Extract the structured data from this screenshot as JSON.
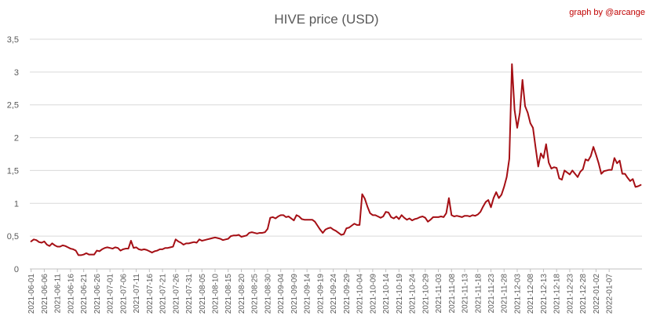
{
  "chart_data": {
    "type": "line",
    "title": "HIVE price (USD)",
    "credit": "graph by @arcange",
    "xlabel": "",
    "ylabel": "",
    "ylim": [
      0,
      3.5
    ],
    "yticks": [
      "0",
      "0,5",
      "1",
      "1,5",
      "2",
      "2,5",
      "3",
      "3,5"
    ],
    "grid": "horizontal",
    "legend": "none",
    "colors": {
      "series": "#a50f15",
      "text": "#595959",
      "credit": "#c00000",
      "grid": "#d9d9d9"
    },
    "x_tick_labels": [
      "2021-06-01",
      "2021-06-06",
      "2021-06-11",
      "2021-06-16",
      "2021-06-21",
      "2021-06-26",
      "2021-07-01",
      "2021-07-06",
      "2021-07-11",
      "2021-07-16",
      "2021-07-21",
      "2021-07-26",
      "2021-07-31",
      "2021-08-05",
      "2021-08-10",
      "2021-08-15",
      "2021-08-20",
      "2021-08-25",
      "2021-08-30",
      "2021-09-04",
      "2021-09-09",
      "2021-09-14",
      "2021-09-19",
      "2021-09-24",
      "2021-09-29",
      "2021-10-04",
      "2021-10-09",
      "2021-10-14",
      "2021-10-19",
      "2021-10-24",
      "2021-10-29",
      "2021-11-03",
      "2021-11-08",
      "2021-11-13",
      "2021-11-18",
      "2021-11-23",
      "2021-11-28",
      "2021-12-03",
      "2021-12-08",
      "2021-12-13",
      "2021-12-18",
      "2021-12-23",
      "2021-12-28",
      "2022-01-02",
      "2022-01-07"
    ],
    "series": [
      {
        "start_date": "2021-06-01",
        "values": [
          0.42,
          0.45,
          0.44,
          0.41,
          0.4,
          0.42,
          0.37,
          0.35,
          0.39,
          0.36,
          0.34,
          0.34,
          0.36,
          0.35,
          0.33,
          0.31,
          0.3,
          0.28,
          0.21,
          0.21,
          0.22,
          0.24,
          0.22,
          0.22,
          0.22,
          0.28,
          0.27,
          0.3,
          0.32,
          0.33,
          0.32,
          0.31,
          0.33,
          0.32,
          0.28,
          0.3,
          0.31,
          0.31,
          0.43,
          0.32,
          0.33,
          0.3,
          0.29,
          0.3,
          0.29,
          0.27,
          0.25,
          0.27,
          0.28,
          0.3,
          0.3,
          0.32,
          0.32,
          0.33,
          0.34,
          0.45,
          0.42,
          0.4,
          0.37,
          0.39,
          0.39,
          0.4,
          0.41,
          0.4,
          0.45,
          0.43,
          0.44,
          0.45,
          0.46,
          0.47,
          0.48,
          0.47,
          0.46,
          0.44,
          0.45,
          0.46,
          0.5,
          0.51,
          0.51,
          0.52,
          0.49,
          0.5,
          0.51,
          0.55,
          0.56,
          0.55,
          0.54,
          0.55,
          0.55,
          0.56,
          0.61,
          0.78,
          0.79,
          0.77,
          0.8,
          0.82,
          0.82,
          0.79,
          0.8,
          0.77,
          0.74,
          0.82,
          0.8,
          0.76,
          0.75,
          0.75,
          0.75,
          0.75,
          0.72,
          0.66,
          0.6,
          0.55,
          0.6,
          0.62,
          0.63,
          0.6,
          0.58,
          0.55,
          0.52,
          0.53,
          0.62,
          0.63,
          0.66,
          0.69,
          0.67,
          0.67,
          1.14,
          1.07,
          0.95,
          0.85,
          0.82,
          0.82,
          0.8,
          0.78,
          0.8,
          0.87,
          0.86,
          0.79,
          0.77,
          0.8,
          0.76,
          0.82,
          0.78,
          0.75,
          0.77,
          0.74,
          0.76,
          0.77,
          0.79,
          0.8,
          0.78,
          0.72,
          0.75,
          0.79,
          0.79,
          0.79,
          0.8,
          0.79,
          0.85,
          1.08,
          0.82,
          0.8,
          0.81,
          0.8,
          0.79,
          0.81,
          0.81,
          0.8,
          0.82,
          0.81,
          0.83,
          0.87,
          0.95,
          1.02,
          1.05,
          0.94,
          1.08,
          1.17,
          1.08,
          1.13,
          1.25,
          1.4,
          1.68,
          3.12,
          2.42,
          2.15,
          2.38,
          2.88,
          2.48,
          2.38,
          2.22,
          2.15,
          1.85,
          1.56,
          1.76,
          1.69,
          1.9,
          1.62,
          1.53,
          1.55,
          1.54,
          1.38,
          1.36,
          1.5,
          1.47,
          1.44,
          1.5,
          1.45,
          1.4,
          1.48,
          1.52,
          1.67,
          1.65,
          1.72,
          1.86,
          1.74,
          1.61,
          1.45,
          1.49,
          1.5,
          1.51,
          1.51,
          1.69,
          1.61,
          1.65,
          1.45,
          1.45,
          1.39,
          1.34,
          1.37,
          1.25,
          1.26,
          1.28
        ]
      }
    ]
  }
}
